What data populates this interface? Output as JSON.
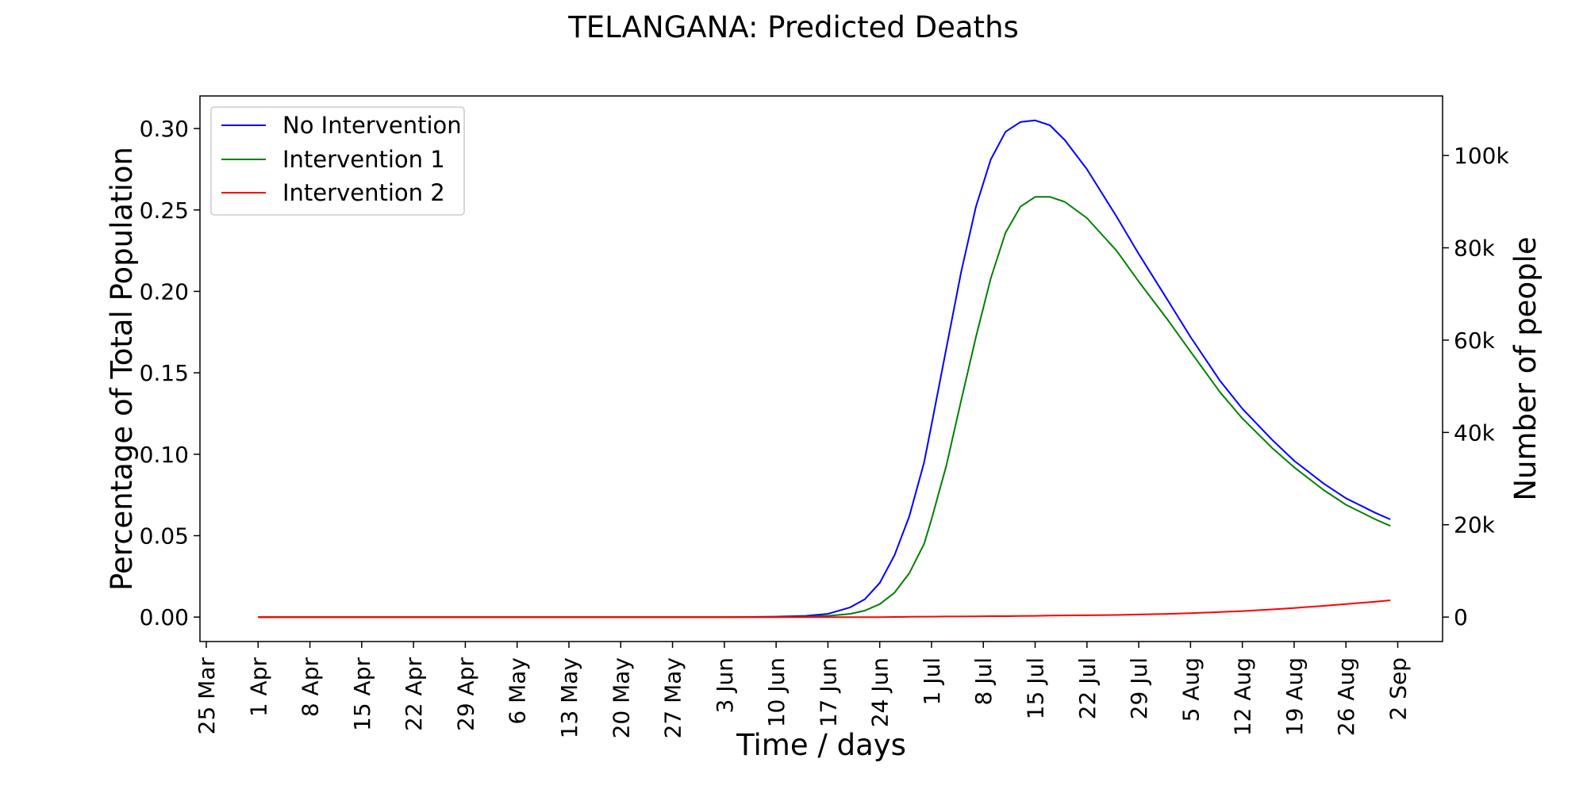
{
  "chart_data": {
    "type": "line",
    "title": "TELANGANA: Predicted Deaths",
    "xlabel": "Time / days",
    "ylabel": "Percentage of Total Population",
    "ylabel_right": "Number of people",
    "x_ticks": [
      "25 Mar",
      "1 Apr",
      "8 Apr",
      "15 Apr",
      "22 Apr",
      "29 Apr",
      "6 May",
      "13 May",
      "20 May",
      "27 May",
      "3 Jun",
      "10 Jun",
      "17 Jun",
      "24 Jun",
      "1 Jul",
      "8 Jul",
      "15 Jul",
      "22 Jul",
      "29 Jul",
      "5 Aug",
      "12 Aug",
      "19 Aug",
      "26 Aug",
      "2 Sep"
    ],
    "y_ticks": [
      "0.00",
      "0.05",
      "0.10",
      "0.15",
      "0.20",
      "0.25",
      "0.30"
    ],
    "y_right_ticks": [
      "0",
      "20k",
      "40k",
      "60k",
      "80k",
      "100k"
    ],
    "ylim": [
      -0.015,
      0.32
    ],
    "y_right_lim": [
      -5300,
      112900
    ],
    "y_right_values": [
      0,
      20000,
      40000,
      60000,
      80000,
      100000
    ],
    "legend_position": "upper-left",
    "x": [
      "1 Apr",
      "8 Apr",
      "15 Apr",
      "22 Apr",
      "29 Apr",
      "6 May",
      "13 May",
      "20 May",
      "27 May",
      "3 Jun",
      "10 Jun",
      "14 Jun",
      "17 Jun",
      "20 Jun",
      "22 Jun",
      "24 Jun",
      "26 Jun",
      "28 Jun",
      "30 Jun",
      "1 Jul",
      "3 Jul",
      "5 Jul",
      "7 Jul",
      "9 Jul",
      "11 Jul",
      "13 Jul",
      "15 Jul",
      "17 Jul",
      "19 Jul",
      "22 Jul",
      "26 Jul",
      "29 Jul",
      "2 Aug",
      "5 Aug",
      "9 Aug",
      "12 Aug",
      "16 Aug",
      "19 Aug",
      "23 Aug",
      "26 Aug",
      "30 Aug",
      "1 Sep"
    ],
    "series": [
      {
        "name": "No Intervention",
        "color": "#0000ff",
        "values": [
          0,
          0,
          0,
          0,
          0,
          0,
          0,
          0,
          0,
          0,
          0.0003,
          0.0008,
          0.002,
          0.006,
          0.011,
          0.021,
          0.038,
          0.062,
          0.095,
          0.118,
          0.165,
          0.212,
          0.252,
          0.281,
          0.298,
          0.304,
          0.305,
          0.302,
          0.293,
          0.275,
          0.246,
          0.223,
          0.194,
          0.172,
          0.145,
          0.128,
          0.109,
          0.096,
          0.082,
          0.073,
          0.064,
          0.06
        ]
      },
      {
        "name": "Intervention 1",
        "color": "#008000",
        "values": [
          0,
          0,
          0,
          0,
          0,
          0,
          0,
          0,
          0,
          0,
          0,
          0.0003,
          0.0008,
          0.002,
          0.004,
          0.008,
          0.015,
          0.027,
          0.045,
          0.06,
          0.093,
          0.133,
          0.172,
          0.208,
          0.236,
          0.252,
          0.258,
          0.258,
          0.255,
          0.245,
          0.225,
          0.206,
          0.182,
          0.163,
          0.138,
          0.122,
          0.104,
          0.092,
          0.078,
          0.069,
          0.06,
          0.056
        ]
      },
      {
        "name": "Intervention 2",
        "color": "#ff0000",
        "values": [
          0,
          0,
          0,
          0,
          0,
          0,
          0,
          0,
          0,
          0,
          0,
          0,
          0,
          0,
          0,
          0,
          0.0001,
          0.0002,
          0.0003,
          0.0003,
          0.0004,
          0.0004,
          0.0005,
          0.0006,
          0.0006,
          0.0007,
          0.0008,
          0.0009,
          0.001,
          0.0011,
          0.0013,
          0.0016,
          0.002,
          0.0024,
          0.0031,
          0.0037,
          0.0047,
          0.0056,
          0.0069,
          0.008,
          0.0095,
          0.0103
        ]
      }
    ]
  }
}
